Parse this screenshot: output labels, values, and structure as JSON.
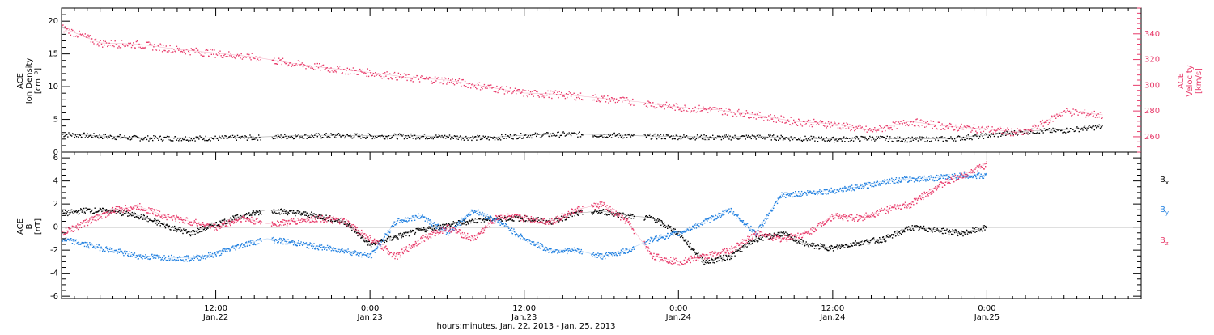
{
  "chart_data": [
    {
      "type": "scatter",
      "panel": "top",
      "ylabel_lines": [
        "ACE",
        "Ion Density",
        "[cm⁻³]"
      ],
      "ylim": [
        0,
        22
      ],
      "yticks": [
        0,
        5,
        10,
        15,
        20
      ],
      "y2label_lines": [
        "ACE",
        "Velocity",
        "[km/s]"
      ],
      "y2lim": [
        248,
        360
      ],
      "y2ticks": [
        260,
        280,
        300,
        320,
        340
      ],
      "xlim": [
        0,
        84
      ],
      "grid": false,
      "series": [
        {
          "name": "Ion Density",
          "axis": "left",
          "color": "#000000",
          "x": [
            0,
            3,
            6,
            9,
            12,
            15,
            18,
            21,
            24,
            27,
            30,
            33,
            36,
            39,
            42,
            45,
            48,
            51,
            54,
            57,
            60,
            63,
            66,
            69,
            72,
            75,
            78,
            81
          ],
          "y": [
            2.8,
            2.5,
            2.2,
            2.2,
            2.2,
            2.3,
            2.5,
            2.6,
            2.5,
            2.5,
            2.4,
            2.2,
            2.6,
            2.8,
            2.7,
            2.5,
            2.4,
            2.3,
            2.4,
            2.2,
            2.0,
            2.2,
            2.0,
            2.1,
            2.6,
            3.2,
            3.4,
            4.0
          ]
        },
        {
          "name": "Velocity",
          "axis": "right",
          "color": "#e83a6a",
          "x": [
            0,
            3,
            6,
            9,
            12,
            15,
            18,
            21,
            24,
            27,
            30,
            33,
            36,
            39,
            42,
            45,
            48,
            51,
            54,
            57,
            60,
            63,
            66,
            69,
            72,
            75,
            78,
            81
          ],
          "y": [
            345,
            333,
            332,
            328,
            325,
            322,
            317,
            313,
            310,
            306,
            304,
            299,
            294,
            293,
            290,
            287,
            283,
            281,
            277,
            272,
            270,
            265,
            272,
            268,
            266,
            263,
            280,
            277
          ]
        }
      ]
    },
    {
      "type": "scatter",
      "panel": "bottom",
      "ylabel_lines": [
        "ACE",
        "B",
        "[nT]"
      ],
      "ylim": [
        -6.2,
        6.5
      ],
      "yticks": [
        -6,
        -4,
        -2,
        0,
        2,
        4,
        6
      ],
      "xlim": [
        0,
        84
      ],
      "grid": false,
      "xlabel": "hours:minutes, Jan. 22, 2013 - Jan. 25, 2013",
      "xticks": [
        {
          "x": 12,
          "time": "12:00",
          "date": "Jan.22"
        },
        {
          "x": 24,
          "time": "0:00",
          "date": "Jan.23"
        },
        {
          "x": 36,
          "time": "12:00",
          "date": "Jan.23"
        },
        {
          "x": 48,
          "time": "0:00",
          "date": "Jan.24"
        },
        {
          "x": 60,
          "time": "12:00",
          "date": "Jan.24"
        },
        {
          "x": 72,
          "time": "0:00",
          "date": "Jan.25"
        }
      ],
      "legend_placement": "right",
      "series": [
        {
          "name": "Bx",
          "label_main": "B",
          "label_sub": "x",
          "color": "#000000",
          "x": [
            0,
            2,
            4,
            6,
            8,
            10,
            12,
            14,
            16,
            18,
            20,
            22,
            24,
            26,
            28,
            30,
            32,
            34,
            36,
            38,
            40,
            42,
            44,
            46,
            48,
            50,
            52,
            54,
            56,
            58,
            60,
            62,
            64,
            66,
            68,
            70,
            72
          ],
          "y": [
            1.2,
            1.5,
            1.4,
            1.0,
            0.2,
            -0.5,
            0.3,
            1.0,
            1.5,
            1.3,
            1.0,
            0.5,
            -1.5,
            -0.8,
            -0.2,
            0.2,
            0.6,
            0.8,
            0.8,
            0.5,
            1.2,
            1.4,
            1.0,
            0.8,
            -0.5,
            -3.0,
            -2.5,
            -1.0,
            -0.5,
            -1.5,
            -1.8,
            -1.3,
            -1.0,
            0.0,
            -0.2,
            -0.5,
            0.0
          ]
        },
        {
          "name": "By",
          "label_main": "B",
          "label_sub": "y",
          "color": "#1f7fe0",
          "x": [
            0,
            2,
            4,
            6,
            8,
            10,
            12,
            14,
            16,
            18,
            20,
            22,
            24,
            26,
            28,
            30,
            32,
            34,
            36,
            38,
            40,
            42,
            44,
            46,
            48,
            50,
            52,
            54,
            56,
            58,
            60,
            62,
            64,
            66,
            68,
            70,
            72
          ],
          "y": [
            -1.0,
            -1.5,
            -2.0,
            -2.5,
            -2.6,
            -2.7,
            -2.3,
            -1.5,
            -1.0,
            -1.3,
            -1.7,
            -2.0,
            -2.5,
            0.5,
            1.0,
            -0.5,
            1.5,
            0.5,
            -1.0,
            -2.0,
            -2.0,
            -2.5,
            -2.0,
            -1.0,
            -0.5,
            0.5,
            1.5,
            -0.5,
            2.8,
            3.0,
            3.2,
            3.5,
            4.0,
            4.2,
            4.3,
            4.5,
            4.5
          ]
        },
        {
          "name": "Bz",
          "label_main": "B",
          "label_sub": "z",
          "color": "#e83a6a",
          "x": [
            0,
            2,
            4,
            6,
            8,
            10,
            12,
            14,
            16,
            18,
            20,
            22,
            24,
            26,
            28,
            30,
            32,
            34,
            36,
            38,
            40,
            42,
            44,
            46,
            48,
            50,
            52,
            54,
            56,
            58,
            60,
            62,
            64,
            66,
            68,
            70,
            72
          ],
          "y": [
            -0.5,
            0.5,
            1.5,
            1.8,
            1.0,
            0.5,
            0.0,
            0.8,
            0.3,
            0.5,
            0.8,
            0.5,
            -1.0,
            -2.5,
            -1.0,
            0.0,
            -1.0,
            1.0,
            0.8,
            0.5,
            1.5,
            2.0,
            0.5,
            -2.5,
            -3.0,
            -2.5,
            -2.0,
            -0.5,
            -1.0,
            -0.5,
            1.0,
            0.8,
            1.5,
            2.0,
            3.5,
            4.5,
            5.5
          ]
        }
      ]
    }
  ]
}
